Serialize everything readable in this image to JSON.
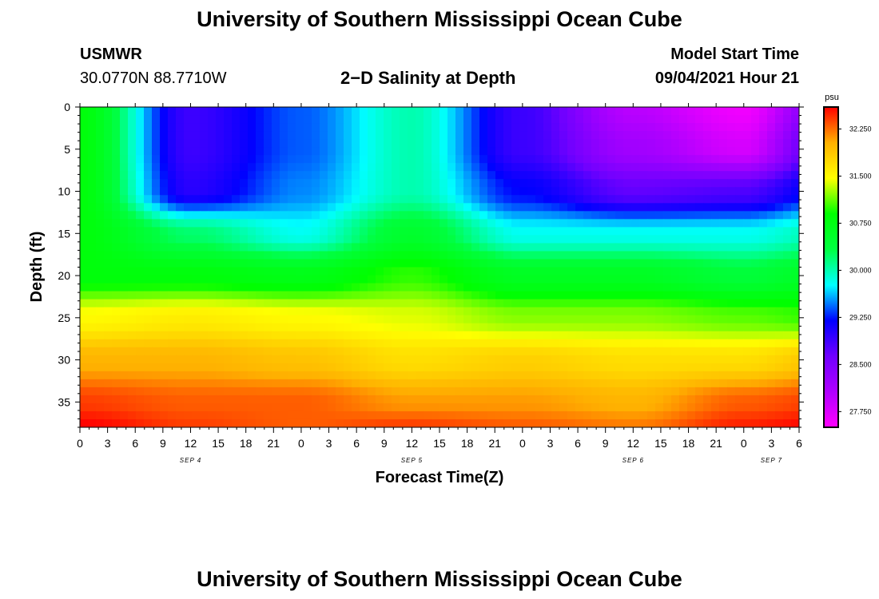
{
  "page": {
    "title_top": "University of Southern Mississippi Ocean Cube",
    "title_bottom": "University of Southern Mississippi Ocean Cube"
  },
  "header": {
    "station": "USMWR",
    "coords": "30.0770N  88.7710W",
    "subtitle": "2−D Salinity at Depth",
    "start_label": "Model Start Time",
    "start_value": "09/04/2021 Hour 21"
  },
  "chart_data": {
    "type": "heatmap",
    "xlabel": "Forecast Time(Z)",
    "ylabel": "Depth (ft)",
    "ylim": [
      0,
      38
    ],
    "y_inverted": true,
    "x_tick_labels": [
      "0",
      "3",
      "6",
      "9",
      "12",
      "15",
      "18",
      "21",
      "0",
      "3",
      "6",
      "9",
      "12",
      "15",
      "18",
      "21",
      "0",
      "3",
      "6",
      "9",
      "12",
      "15",
      "18",
      "21",
      "0",
      "3",
      "6"
    ],
    "y_tick_labels": [
      "0",
      "5",
      "10",
      "15",
      "20",
      "25",
      "30",
      "35"
    ],
    "date_labels": [
      {
        "text": "SEP 4",
        "tick_index": 4
      },
      {
        "text": "SEP 5",
        "tick_index": 12
      },
      {
        "text": "SEP 6",
        "tick_index": 20
      },
      {
        "text": "SEP 7",
        "tick_index": 25
      }
    ],
    "colorbar": {
      "unit": "psu",
      "min": 27.5,
      "max": 32.6,
      "tick_values": [
        27.75,
        28.5,
        29.25,
        30.0,
        30.75,
        31.5,
        32.25
      ],
      "tick_labels": [
        "27.750",
        "28.500",
        "29.250",
        "30.000",
        "30.750",
        "31.500",
        "32.250"
      ],
      "colors": [
        "#ff00ff",
        "#b000ff",
        "#7000ff",
        "#0000ff",
        "#00ffff",
        "#00ff40",
        "#00ff00",
        "#ffff00",
        "#ffb000",
        "#ff0000"
      ]
    },
    "time_hours": [
      0,
      12,
      24,
      36,
      48,
      60,
      72,
      81
    ],
    "depths_ft": [
      0,
      5,
      10,
      15,
      20,
      25,
      30,
      35,
      38
    ],
    "salinity_psu": [
      [
        30.8,
        28.9,
        29.4,
        30.0,
        28.9,
        28.0,
        27.6,
        28.6
      ],
      [
        30.8,
        28.9,
        29.4,
        30.0,
        28.9,
        28.2,
        27.8,
        28.9
      ],
      [
        30.8,
        29.0,
        29.5,
        30.0,
        29.2,
        28.7,
        28.8,
        29.3
      ],
      [
        30.8,
        30.2,
        29.8,
        30.5,
        29.8,
        29.8,
        29.8,
        30.0
      ],
      [
        30.8,
        30.8,
        30.7,
        31.0,
        30.6,
        30.6,
        30.4,
        30.6
      ],
      [
        31.5,
        31.6,
        31.5,
        31.4,
        31.2,
        31.2,
        31.1,
        31.0
      ],
      [
        32.0,
        32.0,
        31.9,
        31.7,
        31.8,
        31.7,
        31.7,
        31.9
      ],
      [
        32.4,
        32.3,
        32.3,
        32.1,
        32.1,
        32.0,
        32.3,
        32.4
      ],
      [
        32.6,
        32.4,
        32.3,
        32.4,
        32.3,
        32.2,
        32.5,
        32.6
      ]
    ]
  }
}
